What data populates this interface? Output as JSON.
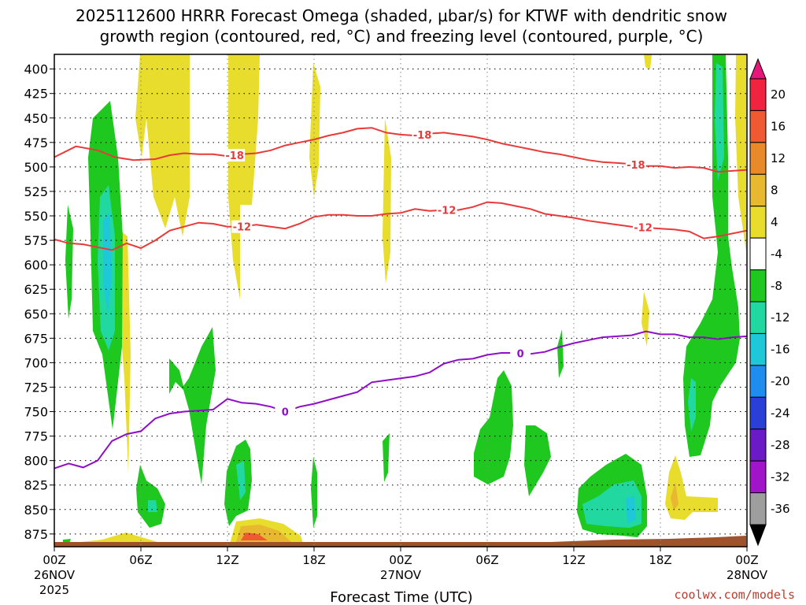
{
  "chart_data": {
    "type": "heatmap",
    "title_line1": "2025112600 HRRR Forecast Omega (shaded, μbar/s) for KTWF with dendritic snow",
    "title_line2": "growth region (contoured, red, °C) and freezing level (contoured, purple, °C)",
    "xlabel": "Forecast Time (UTC)",
    "credit": "coolwx.com/models",
    "ylim": [
      888,
      385
    ],
    "xlim_hours": [
      0,
      48
    ],
    "pressure_ticks": [
      400,
      425,
      450,
      475,
      500,
      525,
      550,
      575,
      600,
      625,
      650,
      675,
      700,
      725,
      750,
      775,
      800,
      825,
      850,
      875
    ],
    "pressure_tick_labels": [
      "400",
      "425",
      "450",
      "475",
      "500",
      "525",
      "550",
      "575",
      "600",
      "625",
      "650",
      "675",
      "700",
      "725",
      "750",
      "775",
      "800",
      "825",
      "850",
      "875"
    ],
    "x_ticks": [
      {
        "hour": 0,
        "label": "00Z",
        "date": "26NOV",
        "year": "2025"
      },
      {
        "hour": 6,
        "label": "06Z"
      },
      {
        "hour": 12,
        "label": "12Z"
      },
      {
        "hour": 18,
        "label": "18Z"
      },
      {
        "hour": 24,
        "label": "00Z",
        "date": "27NOV"
      },
      {
        "hour": 30,
        "label": "06Z"
      },
      {
        "hour": 36,
        "label": "12Z"
      },
      {
        "hour": 42,
        "label": "18Z"
      },
      {
        "hour": 48,
        "label": "00Z",
        "date": "28NOV"
      }
    ],
    "colorbar": {
      "levels": [
        -36,
        -32,
        -28,
        -24,
        -20,
        -16,
        -12,
        -8,
        -4,
        4,
        8,
        12,
        16,
        20
      ],
      "labels": [
        "20",
        "16",
        "12",
        "8",
        "4",
        "-4",
        "-8",
        "-12",
        "-16",
        "-20",
        "-24",
        "-28",
        "-32",
        "-36"
      ],
      "colors": [
        "#ffffff",
        "#9e9e9e",
        "#a015c9",
        "#6a1bc6",
        "#2a3fd8",
        "#1f8cf0",
        "#1fc8d8",
        "#20d8a0",
        "#1fc81f",
        "#ffffff",
        "#e8dc2c",
        "#e8b830",
        "#e88a2a",
        "#ef5a33",
        "#f0243e",
        "#e6167a"
      ]
    },
    "contours": [
      {
        "name": "dgz-upper-minus18",
        "color": "#e83a3a",
        "label": "-18",
        "label_hours": [
          12.5,
          25.5,
          40.3
        ],
        "points": [
          [
            0,
            490
          ],
          [
            1.5,
            479
          ],
          [
            3,
            483
          ],
          [
            4.2,
            490
          ],
          [
            5.5,
            493
          ],
          [
            7,
            492
          ],
          [
            8,
            488
          ],
          [
            9,
            486
          ],
          [
            10,
            487
          ],
          [
            11,
            487
          ],
          [
            12,
            489
          ],
          [
            13,
            487
          ],
          [
            14,
            486
          ],
          [
            15,
            483
          ],
          [
            16,
            478
          ],
          [
            17,
            475
          ],
          [
            18,
            472
          ],
          [
            19,
            468
          ],
          [
            20,
            465
          ],
          [
            21,
            461
          ],
          [
            22,
            460
          ],
          [
            23,
            465
          ],
          [
            24,
            467
          ],
          [
            25,
            468
          ],
          [
            26,
            466
          ],
          [
            27,
            465
          ],
          [
            28,
            467
          ],
          [
            29,
            469
          ],
          [
            30,
            472
          ],
          [
            31,
            476
          ],
          [
            32,
            479
          ],
          [
            33,
            482
          ],
          [
            34,
            485
          ],
          [
            35,
            487
          ],
          [
            36,
            490
          ],
          [
            37,
            493
          ],
          [
            38,
            495
          ],
          [
            39,
            496
          ],
          [
            40,
            497
          ],
          [
            41,
            499
          ],
          [
            42,
            499
          ],
          [
            43,
            501
          ],
          [
            44,
            500
          ],
          [
            45,
            501
          ],
          [
            46,
            505
          ],
          [
            47,
            504
          ],
          [
            48,
            503
          ]
        ]
      },
      {
        "name": "dgz-lower-minus12",
        "color": "#e83a3a",
        "label": "-12",
        "label_hours": [
          13,
          27.2,
          40.8
        ],
        "points": [
          [
            0,
            574
          ],
          [
            1,
            578
          ],
          [
            2,
            579
          ],
          [
            3,
            582
          ],
          [
            4,
            585
          ],
          [
            5,
            578
          ],
          [
            6,
            583
          ],
          [
            7,
            575
          ],
          [
            8,
            565
          ],
          [
            9,
            561
          ],
          [
            10,
            557
          ],
          [
            11,
            558
          ],
          [
            12,
            561
          ],
          [
            13,
            561
          ],
          [
            14,
            559
          ],
          [
            15,
            561
          ],
          [
            16,
            563
          ],
          [
            17,
            558
          ],
          [
            18,
            551
          ],
          [
            19,
            549
          ],
          [
            20,
            549
          ],
          [
            21,
            550
          ],
          [
            22,
            550
          ],
          [
            23,
            548
          ],
          [
            24,
            547
          ],
          [
            25,
            543
          ],
          [
            26,
            545
          ],
          [
            27,
            544
          ],
          [
            28,
            544
          ],
          [
            29,
            541
          ],
          [
            30,
            536
          ],
          [
            31,
            537
          ],
          [
            32,
            540
          ],
          [
            33,
            543
          ],
          [
            34,
            548
          ],
          [
            35,
            550
          ],
          [
            36,
            552
          ],
          [
            37,
            555
          ],
          [
            38,
            557
          ],
          [
            39,
            559
          ],
          [
            40,
            561
          ],
          [
            41,
            562
          ],
          [
            42,
            563
          ],
          [
            43,
            564
          ],
          [
            44,
            566
          ],
          [
            45,
            573
          ],
          [
            46,
            571
          ],
          [
            47,
            568
          ],
          [
            48,
            565
          ]
        ]
      },
      {
        "name": "freezing-level-0",
        "color": "#8e0fc6",
        "label": "0",
        "label_hours": [
          16,
          32.3
        ],
        "points": [
          [
            0,
            808
          ],
          [
            1,
            803
          ],
          [
            2,
            807
          ],
          [
            3,
            800
          ],
          [
            4,
            780
          ],
          [
            5,
            773
          ],
          [
            6,
            770
          ],
          [
            7,
            757
          ],
          [
            8,
            752
          ],
          [
            9,
            750
          ],
          [
            10,
            749
          ],
          [
            11,
            748
          ],
          [
            12,
            737
          ],
          [
            13,
            741
          ],
          [
            14,
            742
          ],
          [
            15,
            745
          ],
          [
            16,
            750
          ],
          [
            17,
            745
          ],
          [
            18,
            742
          ],
          [
            19,
            738
          ],
          [
            20,
            734
          ],
          [
            21,
            730
          ],
          [
            22,
            720
          ],
          [
            23,
            718
          ],
          [
            24,
            716
          ],
          [
            25,
            714
          ],
          [
            26,
            710
          ],
          [
            27,
            701
          ],
          [
            28,
            697
          ],
          [
            29,
            696
          ],
          [
            30,
            692
          ],
          [
            31,
            690
          ],
          [
            32,
            690
          ],
          [
            33,
            691
          ],
          [
            34,
            689
          ],
          [
            35,
            684
          ],
          [
            36,
            680
          ],
          [
            37,
            677
          ],
          [
            38,
            674
          ],
          [
            39,
            673
          ],
          [
            40,
            672
          ],
          [
            41,
            668
          ],
          [
            42,
            671
          ],
          [
            43,
            671
          ],
          [
            44,
            674
          ],
          [
            45,
            674
          ],
          [
            46,
            676
          ],
          [
            47,
            674
          ],
          [
            48,
            673
          ]
        ]
      }
    ]
  }
}
